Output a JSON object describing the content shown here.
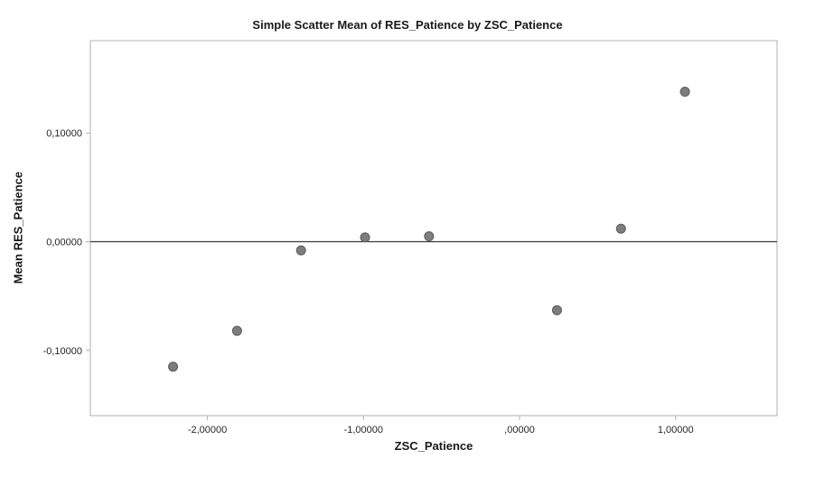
{
  "chart_data": {
    "type": "scatter",
    "title": "Simple Scatter Mean of RES_Patience by ZSC_Patience",
    "xlabel": "ZSC_Patience",
    "ylabel": "Mean RES_Patience",
    "xlim": [
      -2.75,
      1.65
    ],
    "ylim": [
      -0.16,
      0.185
    ],
    "grid": false,
    "legend": false,
    "reference_line_y": 0,
    "x_ticks": [
      {
        "v": -2,
        "label": "-2,00000"
      },
      {
        "v": -1,
        "label": "-1,00000"
      },
      {
        "v": 0,
        "label": ",00000"
      },
      {
        "v": 1,
        "label": "1,00000"
      }
    ],
    "y_ticks": [
      {
        "v": 0.1,
        "label": "0,10000"
      },
      {
        "v": 0,
        "label": "0,00000"
      },
      {
        "v": -0.1,
        "label": "-0,10000"
      }
    ],
    "points": [
      {
        "x": -2.22,
        "y": -0.115
      },
      {
        "x": -1.81,
        "y": -0.082
      },
      {
        "x": -1.4,
        "y": -0.008
      },
      {
        "x": -0.99,
        "y": 0.004
      },
      {
        "x": -0.58,
        "y": 0.005
      },
      {
        "x": 0.24,
        "y": -0.063
      },
      {
        "x": 0.65,
        "y": 0.012
      },
      {
        "x": 1.06,
        "y": 0.138
      }
    ],
    "colors": {
      "point_fill": "#7d7d7d",
      "point_stroke": "#5a5a5a",
      "frame": "#b0b0b0",
      "ref_line": "#3a3a3a",
      "tick_text": "#262626"
    }
  }
}
